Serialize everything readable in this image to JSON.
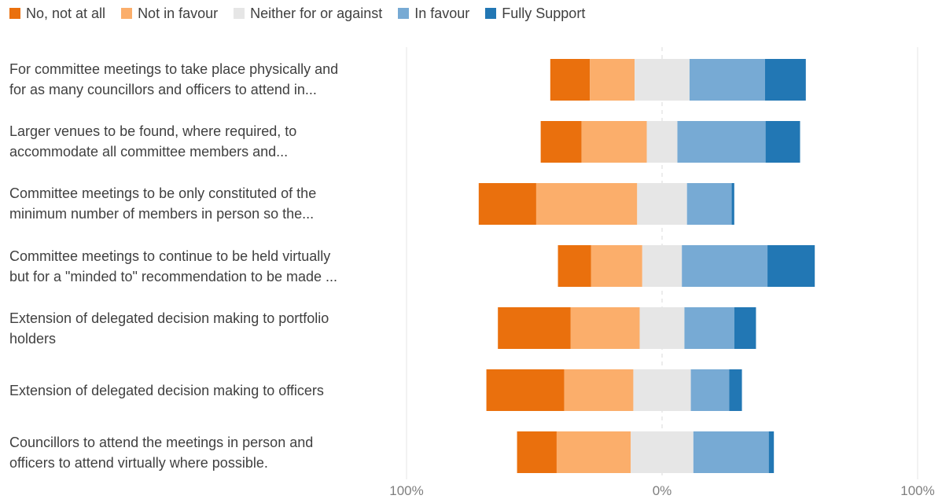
{
  "chart_data": {
    "type": "bar",
    "subtype": "diverging-stacked",
    "legend": [
      {
        "name": "No, not at all",
        "color": "#ea700d"
      },
      {
        "name": "Not in favour",
        "color": "#fbae6b"
      },
      {
        "name": "Neither for or against",
        "color": "#e6e6e6"
      },
      {
        "name": "In favour",
        "color": "#77aad4"
      },
      {
        "name": "Fully Support",
        "color": "#2277b4"
      }
    ],
    "legend_position": "top-left",
    "categories": [
      {
        "line1": "For committee meetings to take place physically and",
        "line2": "for as many councillors and officers to attend in..."
      },
      {
        "line1": "Larger venues to be found, where required, to",
        "line2": "accommodate all committee members and..."
      },
      {
        "line1": "Committee meetings to be only constituted of the",
        "line2": "minimum number of members in person so the..."
      },
      {
        "line1": "Committee meetings to continue to be held virtually",
        "line2": "but for a \"minded to\" recommendation to be made ..."
      },
      {
        "line1": "Extension of delegated decision making to portfolio",
        "line2": "holders"
      },
      {
        "line1": "Extension of delegated decision making to officers",
        "line2": ""
      },
      {
        "line1": "Councillors to attend the meetings in person and",
        "line2": "officers to attend virtually where possible."
      }
    ],
    "series": [
      {
        "name": "No, not at all",
        "values": [
          15.5,
          16,
          22.5,
          13,
          28.5,
          30.5,
          15.5
        ]
      },
      {
        "name": "Not in favour",
        "values": [
          17.5,
          25.5,
          39.5,
          20,
          27,
          27,
          29
        ]
      },
      {
        "name": "Neither for or against",
        "values": [
          21.5,
          12,
          19.5,
          15.5,
          17.5,
          22.5,
          24.5
        ]
      },
      {
        "name": "In favour",
        "values": [
          29.5,
          34.5,
          17.5,
          33.5,
          19.5,
          15,
          29.5
        ]
      },
      {
        "name": "Fully Support",
        "values": [
          16,
          13.5,
          1,
          18.5,
          8.5,
          5,
          2
        ]
      }
    ],
    "x_ticks": [
      "100%",
      "0%",
      "100%"
    ],
    "xlim": [
      -100,
      100
    ],
    "grid": true
  }
}
